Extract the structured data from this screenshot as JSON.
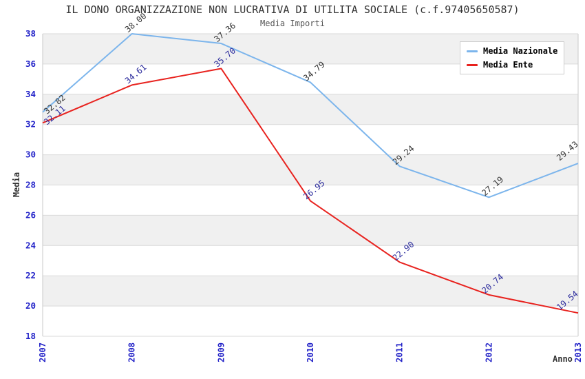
{
  "chart_data": {
    "type": "line",
    "title": "IL DONO ORGANIZZAZIONE NON LUCRATIVA DI UTILITA SOCIALE (c.f.97405650587)",
    "subtitle": "Media Importi",
    "xlabel": "Anno",
    "ylabel": "Media",
    "x": [
      "2007",
      "2008",
      "2009",
      "2010",
      "2011",
      "2012",
      "2013"
    ],
    "series": [
      {
        "name": "Media Nazionale",
        "color": "#7cb5ec",
        "label_color": "#333333",
        "values": [
          32.82,
          38.0,
          37.36,
          34.79,
          29.24,
          27.19,
          29.43
        ]
      },
      {
        "name": "Media Ente",
        "color": "#e8221e",
        "label_color": "#2a2a9c",
        "values": [
          32.11,
          34.61,
          35.7,
          26.95,
          22.9,
          20.74,
          19.54
        ]
      }
    ],
    "ylim": [
      18,
      38
    ],
    "ytick_step": 2,
    "yticks": [
      18,
      20,
      22,
      24,
      26,
      28,
      30,
      32,
      34,
      36,
      38
    ],
    "grid_on": true,
    "legend_position": "top-right",
    "legend_entries": [
      "Media Nazionale",
      "Media Ente"
    ],
    "colors": {
      "band": "#f0f0f0",
      "grid": "#d9d9d9",
      "spine": "#c9c9c9",
      "axis_tick_text": "#2323c8",
      "title_text": "#333333",
      "subtitle_text": "#555555"
    },
    "value_label_decimals": 2
  }
}
